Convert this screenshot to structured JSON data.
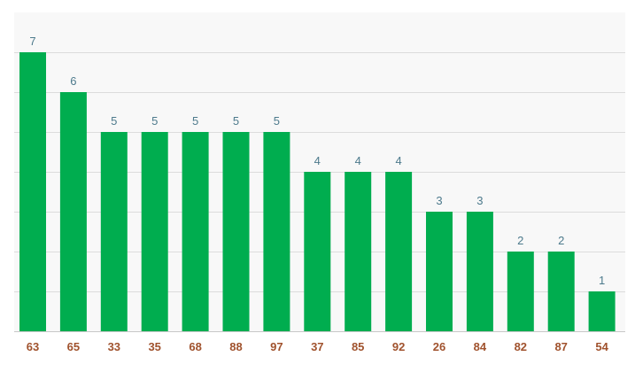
{
  "chart_data": {
    "type": "bar",
    "title": "",
    "xlabel": "",
    "ylabel": "",
    "categories": [
      "63",
      "65",
      "33",
      "35",
      "68",
      "88",
      "97",
      "37",
      "85",
      "92",
      "26",
      "84",
      "82",
      "87",
      "54"
    ],
    "values": [
      7,
      6,
      5,
      5,
      5,
      5,
      5,
      4,
      4,
      4,
      3,
      3,
      2,
      2,
      1
    ],
    "ylim": [
      0,
      8
    ],
    "grid": true,
    "data_labels": true,
    "legend": "none",
    "colors": {
      "bar": "#00ad4f",
      "plot_background": "#f8f8f8",
      "value_label": "#4d7a8c",
      "x_label": "#a0522d",
      "grid": "#dcdcdc"
    }
  }
}
